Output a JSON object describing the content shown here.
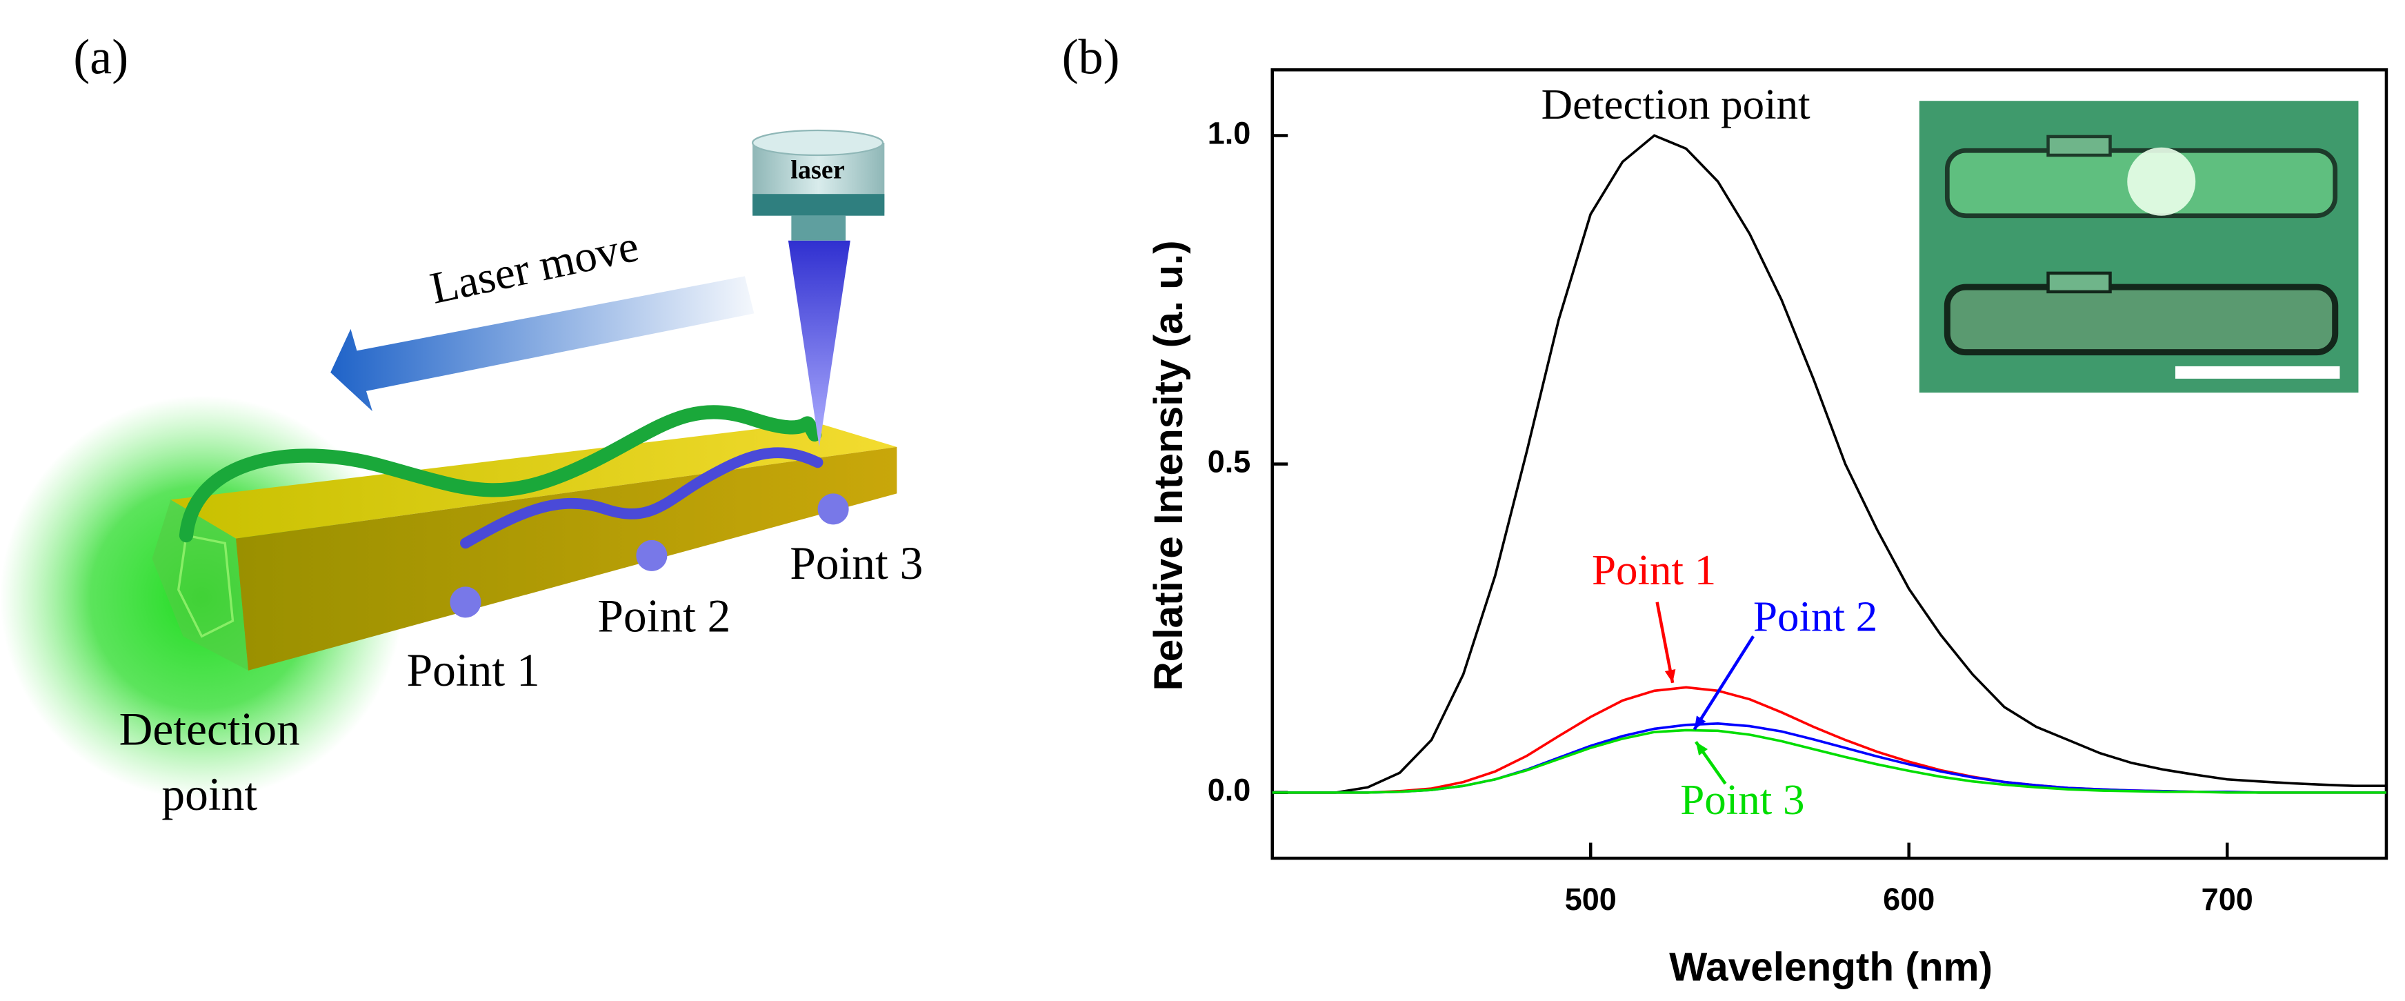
{
  "diagram": {
    "panel_label": "(a)",
    "laser_label": "laser",
    "arrow_label": "Laser move",
    "points": [
      "Point 1",
      "Point 2",
      "Point 3"
    ],
    "detection_label": [
      "Detection",
      "point"
    ]
  },
  "chart_data": {
    "type": "line",
    "panel_label": "(b)",
    "x_label": "Wavelength (nm)",
    "y_label": "Relative Intensity (a. u.)",
    "xlim": [
      400,
      750
    ],
    "ylim": [
      -0.1,
      1.1
    ],
    "xticks": [
      500,
      600,
      700
    ],
    "yticks": [
      {
        "value": 0,
        "label": "0.0"
      },
      0.5,
      {
        "value": 1,
        "label": "1.0"
      }
    ],
    "x": [
      400,
      410,
      420,
      430,
      440,
      450,
      460,
      470,
      480,
      490,
      500,
      510,
      520,
      530,
      540,
      550,
      560,
      570,
      580,
      590,
      600,
      610,
      620,
      630,
      640,
      650,
      660,
      670,
      680,
      690,
      700,
      710,
      720,
      730,
      740,
      750
    ],
    "series": [
      {
        "name": "Detection point",
        "color": "#000000",
        "values": [
          0,
          0,
          0,
          0.008,
          0.03,
          0.08,
          0.18,
          0.33,
          0.52,
          0.72,
          0.88,
          0.96,
          1.0,
          0.98,
          0.93,
          0.85,
          0.75,
          0.63,
          0.5,
          0.4,
          0.31,
          0.24,
          0.18,
          0.13,
          0.1,
          0.08,
          0.06,
          0.045,
          0.035,
          0.027,
          0.02,
          0.017,
          0.014,
          0.012,
          0.01,
          0.01
        ]
      },
      {
        "name": "Point 1",
        "color": "#ff0000",
        "values": [
          0,
          0,
          0,
          0,
          0.002,
          0.006,
          0.016,
          0.032,
          0.056,
          0.086,
          0.115,
          0.14,
          0.155,
          0.16,
          0.155,
          0.142,
          0.122,
          0.1,
          0.08,
          0.062,
          0.047,
          0.034,
          0.024,
          0.016,
          0.011,
          0.007,
          0.005,
          0.003,
          0.002,
          0.001,
          0.001,
          0,
          0,
          0,
          0,
          0
        ]
      },
      {
        "name": "Point 2",
        "color": "#0000ff",
        "values": [
          0,
          0,
          0,
          0,
          0.001,
          0.004,
          0.01,
          0.02,
          0.035,
          0.053,
          0.071,
          0.086,
          0.097,
          0.103,
          0.105,
          0.101,
          0.093,
          0.081,
          0.068,
          0.055,
          0.043,
          0.032,
          0.023,
          0.016,
          0.011,
          0.007,
          0.005,
          0.003,
          0.002,
          0.001,
          0.001,
          0,
          0,
          0,
          0,
          0
        ]
      },
      {
        "name": "Point 3",
        "color": "#00dd00",
        "values": [
          0,
          0,
          0,
          0,
          0.001,
          0.004,
          0.01,
          0.02,
          0.034,
          0.051,
          0.068,
          0.082,
          0.092,
          0.095,
          0.094,
          0.088,
          0.078,
          0.066,
          0.054,
          0.043,
          0.033,
          0.024,
          0.017,
          0.012,
          0.008,
          0.005,
          0.003,
          0.002,
          0.001,
          0.001,
          0,
          0,
          0,
          0,
          0,
          0
        ]
      }
    ]
  }
}
